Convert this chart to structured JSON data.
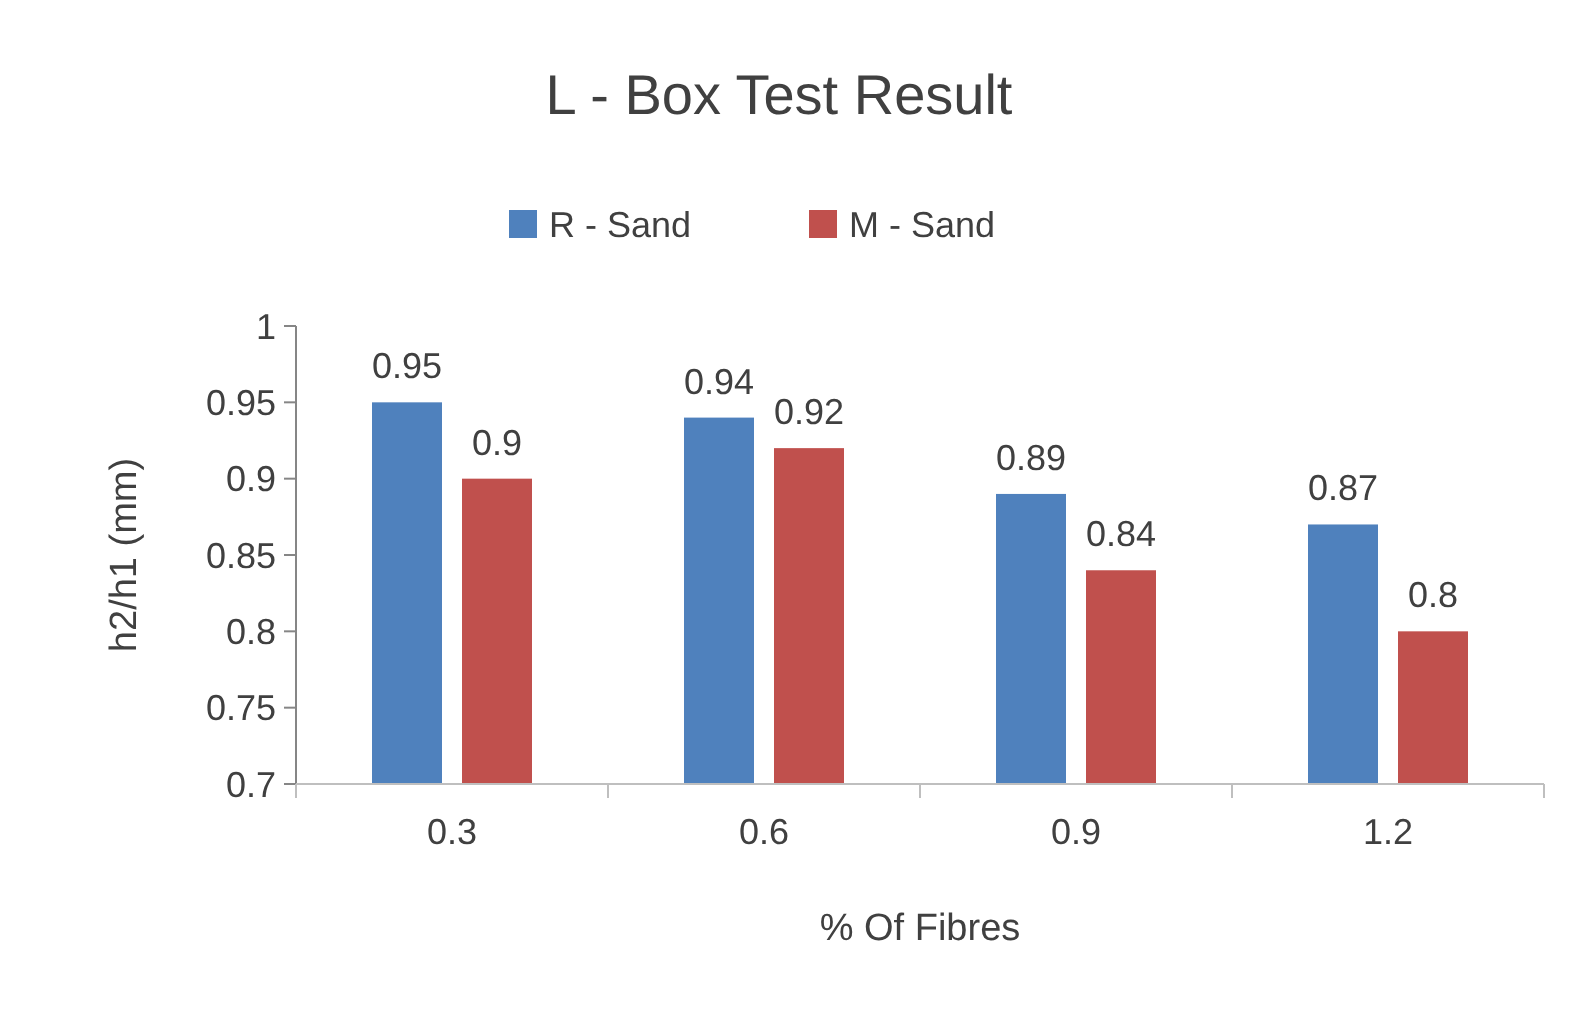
{
  "chart_data": {
    "type": "bar",
    "title": "L - Box Test Result",
    "xlabel": "% Of Fibres",
    "ylabel": "h2/h1 (mm)",
    "categories": [
      "0.3",
      "0.6",
      "0.9",
      "1.2"
    ],
    "series": [
      {
        "name": "R - Sand",
        "color": "#4f81bd",
        "values": [
          0.95,
          0.94,
          0.89,
          0.87
        ]
      },
      {
        "name": "M - Sand",
        "color": "#c0504d",
        "values": [
          0.9,
          0.92,
          0.84,
          0.8
        ]
      }
    ],
    "ylim": [
      0.7,
      1
    ],
    "yticks": [
      0.7,
      0.75,
      0.8,
      0.85,
      0.9,
      0.95,
      1
    ],
    "grid": false,
    "legend": "top",
    "data_labels": true
  }
}
